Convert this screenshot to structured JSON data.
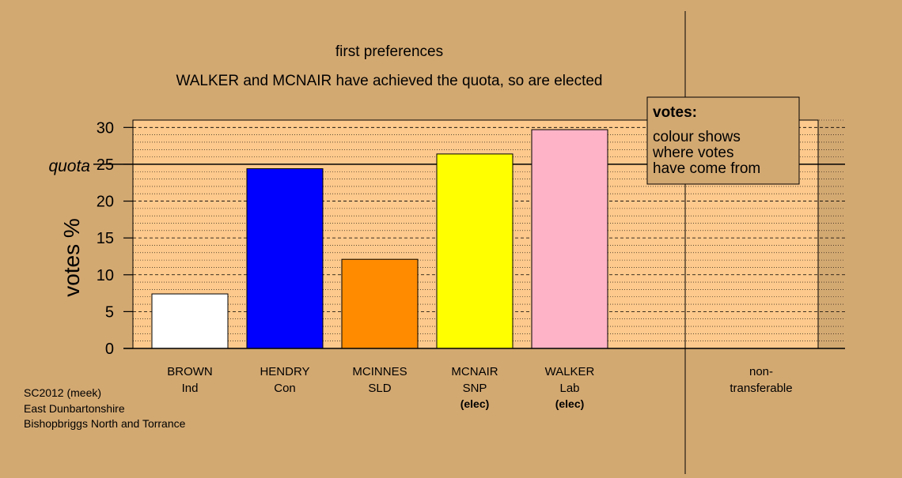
{
  "title_line1": "first preferences",
  "title_line2": "WALKER and MCNAIR have achieved the quota, so are elected",
  "legend": {
    "heading": "votes:",
    "lines": [
      "colour shows",
      "where votes",
      "have come from"
    ]
  },
  "footer": {
    "line1": "SC2012 (meek)",
    "line2": "East Dunbartonshire",
    "line3": "Bishopbriggs North and Torrance"
  },
  "chart_data": {
    "type": "bar",
    "title": "first preferences",
    "subtitle": "WALKER and MCNAIR have achieved the quota, so are elected",
    "ylabel": "votes %",
    "xlabel": "",
    "ylim": [
      0,
      31
    ],
    "yticks": [
      0,
      5,
      10,
      15,
      20,
      25,
      30
    ],
    "quota": 25,
    "quota_label": "quota",
    "grid": true,
    "legend_position": "top-right",
    "categories": [
      {
        "name": "BROWN",
        "party": "Ind",
        "value": 7.4,
        "color": "#ffffff",
        "status": ""
      },
      {
        "name": "HENDRY",
        "party": "Con",
        "value": 24.4,
        "color": "#0000ff",
        "status": ""
      },
      {
        "name": "MCINNES",
        "party": "SLD",
        "value": 12.1,
        "color": "#ff8c00",
        "status": ""
      },
      {
        "name": "MCNAIR",
        "party": "SNP",
        "value": 26.4,
        "color": "#ffff00",
        "status": "(elec)"
      },
      {
        "name": "WALKER",
        "party": "Lab",
        "value": 29.7,
        "color": "#ffb3c6",
        "status": "(elec)"
      }
    ],
    "nontransferable": {
      "label_line1": "non-",
      "label_line2": "transferable",
      "value": 0
    }
  },
  "colors": {
    "background": "#d3a972",
    "plot_background": "#fdc98c",
    "legend_background": "#d3a972"
  }
}
